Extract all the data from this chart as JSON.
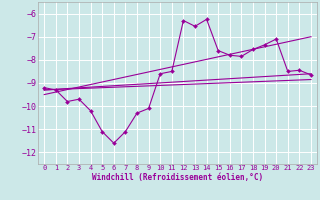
{
  "xlabel": "Windchill (Refroidissement éolien,°C)",
  "bg_color": "#cce8e8",
  "line_color": "#990099",
  "grid_color": "#ffffff",
  "xlim": [
    -0.5,
    23.5
  ],
  "ylim": [
    -12.5,
    -5.5
  ],
  "yticks": [
    -12,
    -11,
    -10,
    -9,
    -8,
    -7,
    -6
  ],
  "xticks": [
    0,
    1,
    2,
    3,
    4,
    5,
    6,
    7,
    8,
    9,
    10,
    11,
    12,
    13,
    14,
    15,
    16,
    17,
    18,
    19,
    20,
    21,
    22,
    23
  ],
  "series1_x": [
    0,
    1,
    2,
    3,
    4,
    5,
    6,
    7,
    8,
    9,
    10,
    11,
    12,
    13,
    14,
    15,
    16,
    17,
    18,
    19,
    20,
    21,
    22,
    23
  ],
  "series1_y": [
    -9.2,
    -9.3,
    -9.8,
    -9.7,
    -10.2,
    -11.1,
    -11.6,
    -11.1,
    -10.3,
    -10.1,
    -8.6,
    -8.5,
    -6.3,
    -6.55,
    -6.25,
    -7.6,
    -7.8,
    -7.85,
    -7.55,
    -7.35,
    -7.1,
    -8.5,
    -8.45,
    -8.65
  ],
  "series2_x": [
    0,
    23
  ],
  "series2_y": [
    -9.3,
    -8.6
  ],
  "series3_x": [
    0,
    23
  ],
  "series3_y": [
    -9.5,
    -7.0
  ],
  "series4_x": [
    0,
    23
  ],
  "series4_y": [
    -9.3,
    -8.85
  ]
}
